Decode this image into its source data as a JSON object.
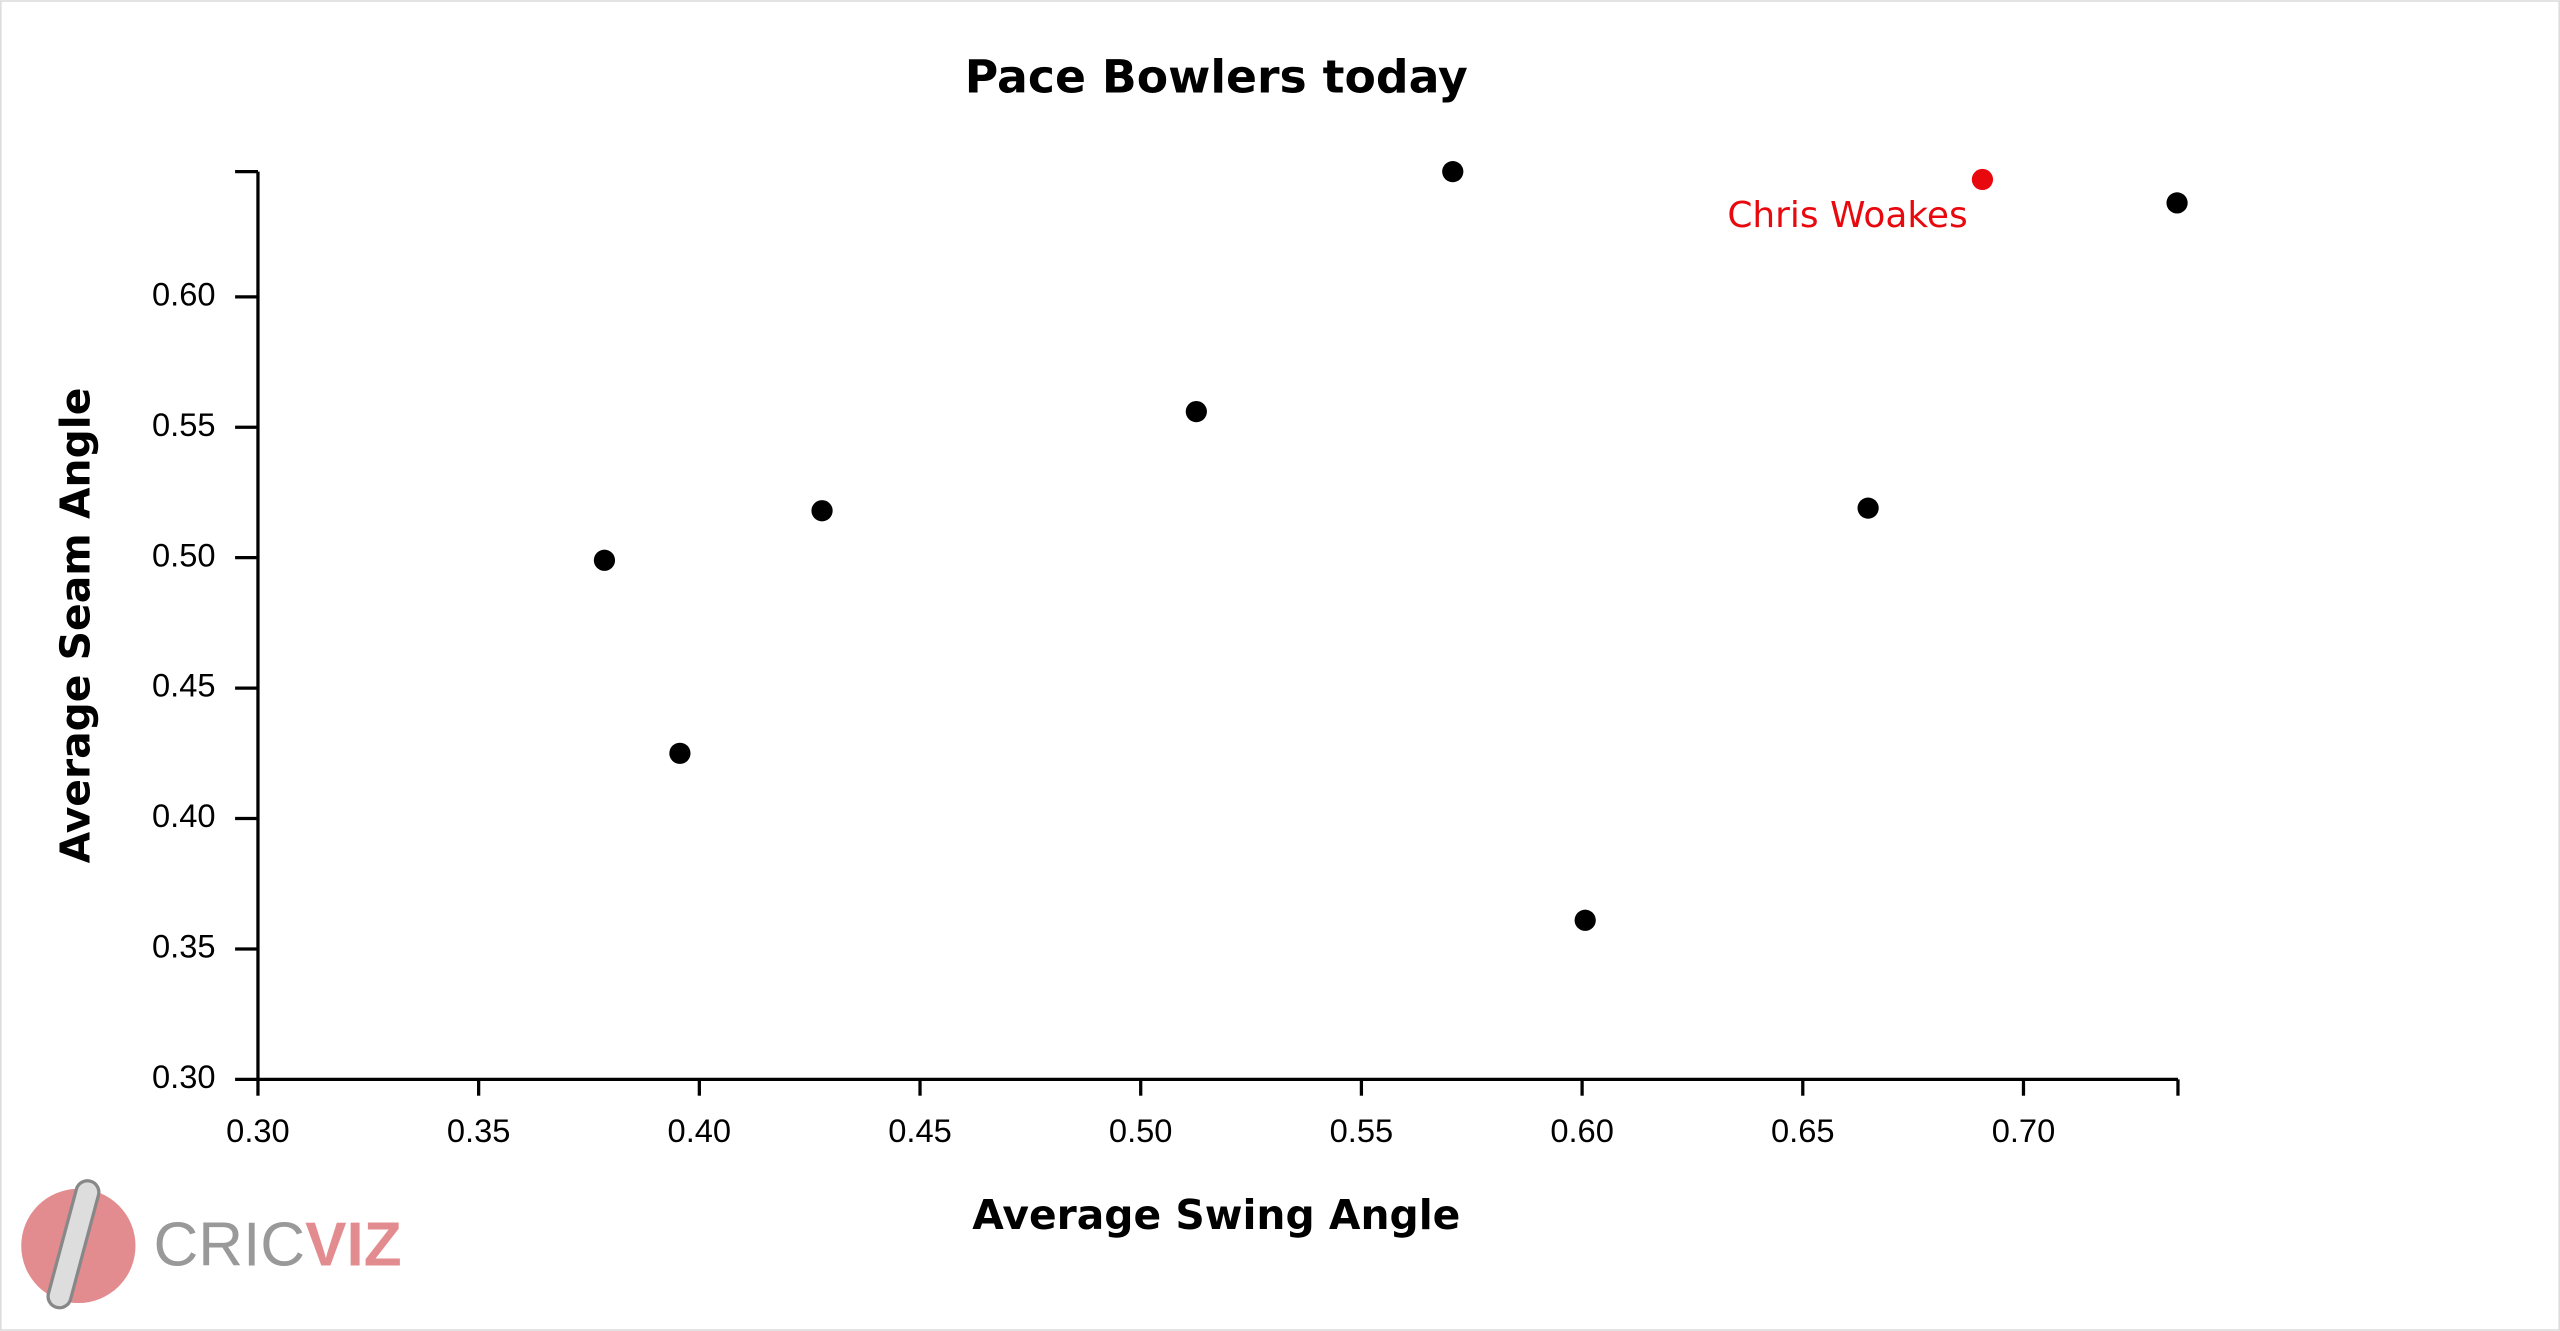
{
  "chart_data": {
    "type": "scatter",
    "title": "Pace Bowlers today",
    "x_label": "Average Swing Angle",
    "y_label": "Average Seam Angle",
    "series": [
      {
        "color": "#000000",
        "x": [
          0.3785,
          0.3956,
          0.4278,
          0.5126,
          0.5707,
          0.6007,
          0.6648,
          0.7348
        ],
        "y": [
          0.499,
          0.425,
          0.518,
          0.556,
          0.648,
          0.361,
          0.519,
          0.636
        ]
      },
      {
        "name": "Chris Woakes",
        "color": "#e8090e",
        "x": [
          0.6907
        ],
        "y": [
          0.645
        ]
      }
    ],
    "xlim": [
      0.3,
      0.735
    ],
    "ylim": [
      0.3,
      0.648
    ],
    "xticks": [
      {
        "value": 0.3,
        "label": "0.30"
      },
      {
        "value": 0.35,
        "label": "0.35"
      },
      {
        "value": 0.4,
        "label": "0.40"
      },
      {
        "value": 0.45,
        "label": "0.45"
      },
      {
        "value": 0.5,
        "label": "0.50"
      },
      {
        "value": 0.55,
        "label": "0.55"
      },
      {
        "value": 0.6,
        "label": "0.60"
      },
      {
        "value": 0.65,
        "label": "0.65"
      },
      {
        "value": 0.7,
        "label": "0.70"
      }
    ],
    "yticks": [
      {
        "value": 0.3,
        "label": "0.30"
      },
      {
        "value": 0.35,
        "label": "0.35"
      },
      {
        "value": 0.4,
        "label": "0.40"
      },
      {
        "value": 0.45,
        "label": "0.45"
      },
      {
        "value": 0.5,
        "label": "0.50"
      },
      {
        "value": 0.55,
        "label": "0.55"
      },
      {
        "value": 0.6,
        "label": "0.60"
      }
    ],
    "logo": {
      "left": "CRIC",
      "right": "VIZ"
    }
  }
}
